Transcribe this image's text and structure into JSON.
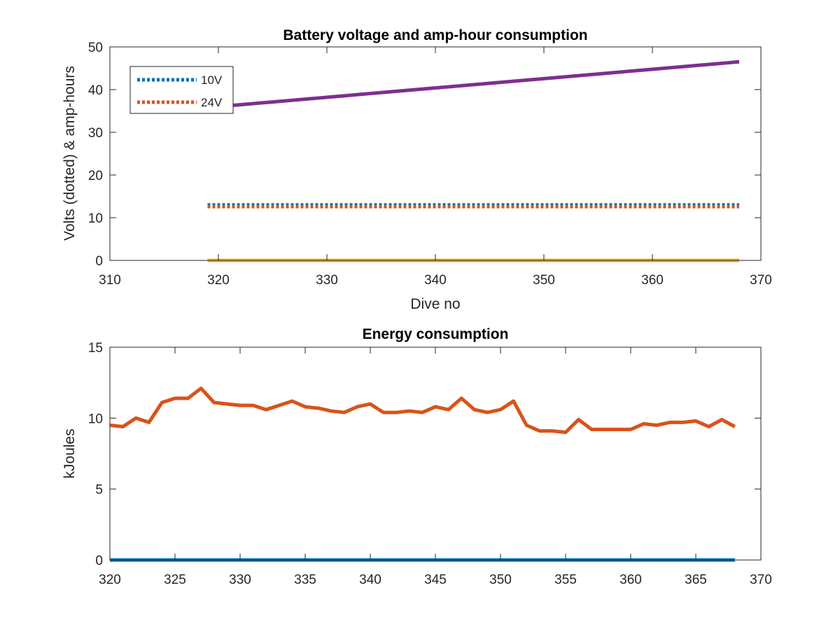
{
  "colors": {
    "blue": "#0072BD",
    "orange": "#D95319",
    "yellow": "#EDB120",
    "purple": "#7E2F8E",
    "axis": "#262626"
  },
  "chart_data": [
    {
      "type": "line",
      "title": "Battery voltage and amp-hour consumption",
      "xlabel": "Dive no",
      "ylabel": "Volts (dotted) & amp-hours",
      "xlim": [
        310,
        370
      ],
      "ylim": [
        0,
        50
      ],
      "xticks": [
        310,
        320,
        330,
        340,
        350,
        360,
        370
      ],
      "yticks": [
        0,
        10,
        20,
        30,
        40,
        50
      ],
      "grid": false,
      "legend_position": "top-left",
      "series": [
        {
          "name": "10V",
          "style": "dotted",
          "color": "#0072BD",
          "x": [
            319,
            368
          ],
          "y": [
            13.0,
            13.0
          ]
        },
        {
          "name": "24V",
          "style": "dotted",
          "color": "#D95319",
          "x": [
            319,
            368
          ],
          "y": [
            12.6,
            12.6
          ]
        },
        {
          "style": "solid",
          "color": "#EDB120",
          "x": [
            319,
            368
          ],
          "y": [
            0,
            0
          ]
        },
        {
          "style": "solid",
          "color": "#7E2F8E",
          "x": [
            319,
            368
          ],
          "y": [
            35.8,
            46.5
          ]
        }
      ]
    },
    {
      "type": "line",
      "title": "Energy consumption",
      "xlabel": "",
      "ylabel": "kJoules",
      "xlim": [
        320,
        370
      ],
      "ylim": [
        0,
        15
      ],
      "xticks": [
        320,
        325,
        330,
        335,
        340,
        345,
        350,
        355,
        360,
        365,
        370
      ],
      "yticks": [
        0,
        5,
        10,
        15
      ],
      "grid": false,
      "series": [
        {
          "style": "solid",
          "color": "#D95319",
          "x": [
            320,
            321,
            322,
            323,
            324,
            325,
            326,
            327,
            328,
            329,
            330,
            331,
            332,
            333,
            334,
            335,
            336,
            337,
            338,
            339,
            340,
            341,
            342,
            343,
            344,
            345,
            346,
            347,
            348,
            349,
            350,
            351,
            352,
            353,
            354,
            355,
            356,
            357,
            358,
            359,
            360,
            361,
            362,
            363,
            364,
            365,
            366,
            367,
            368
          ],
          "y": [
            9.5,
            9.4,
            10.0,
            9.7,
            11.1,
            11.4,
            11.4,
            12.1,
            11.1,
            11.0,
            10.9,
            10.9,
            10.6,
            10.9,
            11.2,
            10.8,
            10.7,
            10.5,
            10.4,
            10.8,
            11.0,
            10.4,
            10.4,
            10.5,
            10.4,
            10.8,
            10.6,
            11.4,
            10.6,
            10.4,
            10.6,
            11.2,
            9.5,
            9.1,
            9.1,
            9.0,
            9.9,
            9.2,
            9.2,
            9.2,
            9.2,
            9.6,
            9.5,
            9.7,
            9.7,
            9.8,
            9.4,
            9.9,
            9.4
          ]
        },
        {
          "style": "solid",
          "color": "#0072BD",
          "x": [
            320,
            368
          ],
          "y": [
            0,
            0
          ]
        }
      ]
    }
  ]
}
